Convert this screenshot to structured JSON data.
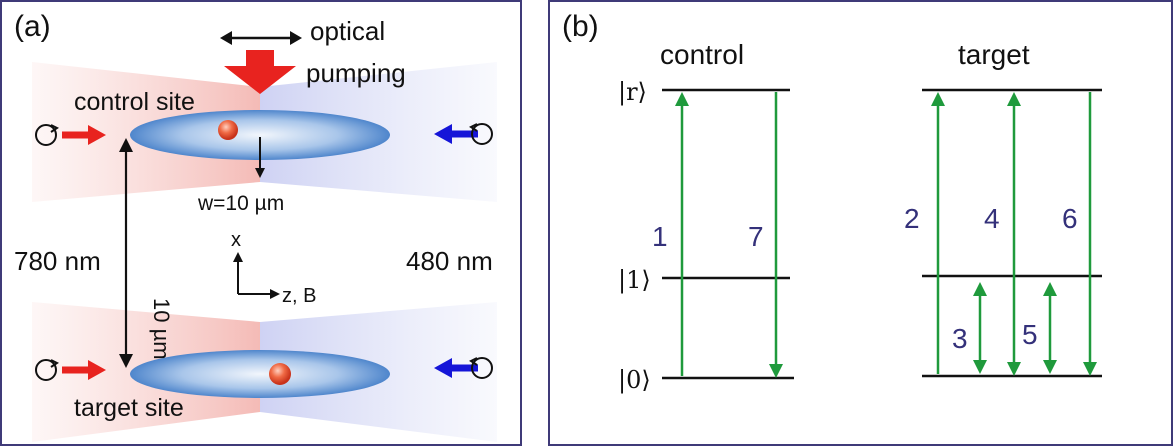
{
  "panel_a": {
    "tag": "(a)",
    "optical_pumping_line1": "optical",
    "optical_pumping_line2": "pumping",
    "control_site": "control site",
    "target_site": "target site",
    "waist": "w=10 µm",
    "separation": "10 µm",
    "left_laser": "780 nm",
    "right_laser": "480 nm",
    "axis_x": "x",
    "axis_z": "z, B",
    "colors": {
      "red_beam": "#e8231f",
      "blue_beam": "#1515d8",
      "atom": "#e44b2c",
      "ellipse": "#6f9fd8"
    }
  },
  "panel_b": {
    "tag": "(b)",
    "control_title": "control",
    "target_title": "target",
    "level_r": "|r⟩",
    "level_1": "|1⟩",
    "level_0": "|0⟩",
    "transitions": [
      "1",
      "7",
      "2",
      "4",
      "6",
      "3",
      "5"
    ],
    "colors": {
      "arrow": "#1f9a3c",
      "number": "#34317a"
    }
  }
}
